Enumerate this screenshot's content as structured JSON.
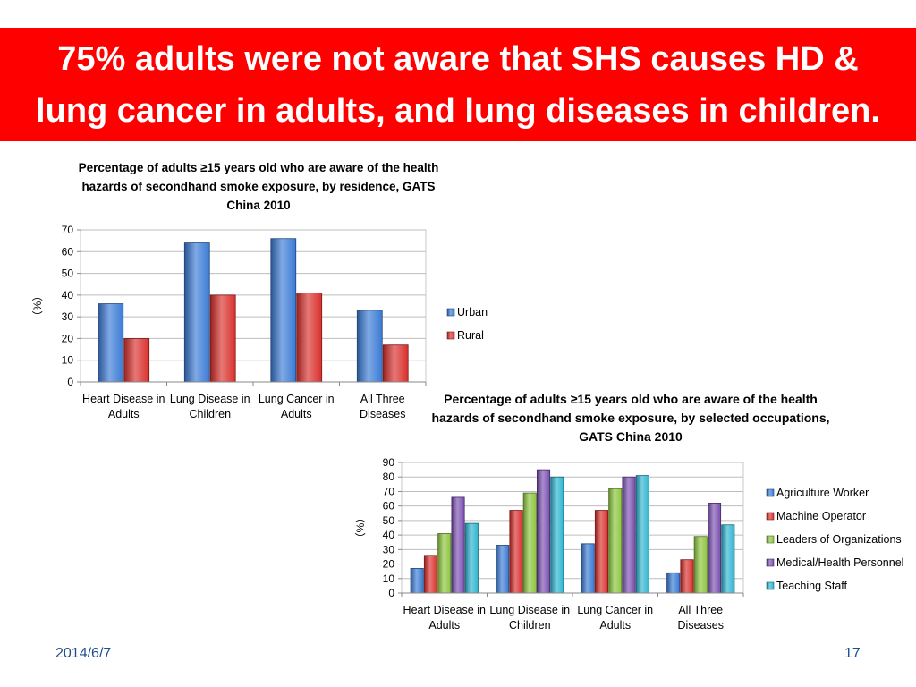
{
  "slide": {
    "title": "75% adults were not aware that SHS causes HD & lung cancer in adults, and lung diseases in children.",
    "date": "2014/6/7",
    "page_number": "17",
    "banner_color": "#ff0000"
  },
  "chart_data": [
    {
      "type": "bar",
      "title": "Percentage of adults ≥15 years old who are aware of the health hazards of secondhand smoke exposure, by residence, GATS China 2010",
      "ylabel": "（%）",
      "ylim": [
        0,
        70
      ],
      "yticks": [
        0,
        10,
        20,
        30,
        40,
        50,
        60,
        70
      ],
      "categories": [
        "Heart Disease in Adults",
        "Lung Disease in Children",
        "Lung Cancer in Adults",
        "All Three Diseases"
      ],
      "category_lines": [
        [
          "Heart Disease in",
          "Adults"
        ],
        [
          "Lung Disease in",
          "Children"
        ],
        [
          "Lung Cancer in",
          "Adults"
        ],
        [
          "All Three",
          "Diseases"
        ]
      ],
      "series": [
        {
          "name": "Urban",
          "values": [
            36,
            64,
            66,
            33
          ],
          "color": "#3a7bd5"
        },
        {
          "name": "Rural",
          "values": [
            20,
            40,
            41,
            17
          ],
          "color": "#d9302c"
        }
      ],
      "legend_position": "right",
      "grid": true
    },
    {
      "type": "bar",
      "title": "Percentage of adults ≥15 years old who are aware of the health hazards of secondhand smoke exposure, by selected occupations, GATS China 2010",
      "ylabel": "（%）",
      "ylim": [
        0,
        90
      ],
      "yticks": [
        0,
        10,
        20,
        30,
        40,
        50,
        60,
        70,
        80,
        90
      ],
      "categories": [
        "Heart Disease in Adults",
        "Lung Disease in Children",
        "Lung Cancer in Adults",
        "All Three Diseases"
      ],
      "category_lines": [
        [
          "Heart Disease in",
          "Adults"
        ],
        [
          "Lung Disease in",
          "Children"
        ],
        [
          "Lung Cancer in",
          "Adults"
        ],
        [
          "All Three",
          "Diseases"
        ]
      ],
      "series": [
        {
          "name": "Agriculture Worker",
          "values": [
            17,
            33,
            34,
            14
          ],
          "color": "#3a7bd5"
        },
        {
          "name": "Machine Operator",
          "values": [
            26,
            57,
            57,
            23
          ],
          "color": "#d9302c"
        },
        {
          "name": "Leaders of Organizations",
          "values": [
            41,
            69,
            72,
            39
          ],
          "color": "#8dc63f"
        },
        {
          "name": "Medical/Health Personnel",
          "values": [
            66,
            85,
            80,
            62
          ],
          "color": "#7a4fb0"
        },
        {
          "name": "Teaching Staff",
          "values": [
            48,
            80,
            81,
            47
          ],
          "color": "#2fb5d0"
        }
      ],
      "legend_position": "right",
      "grid": true
    }
  ]
}
